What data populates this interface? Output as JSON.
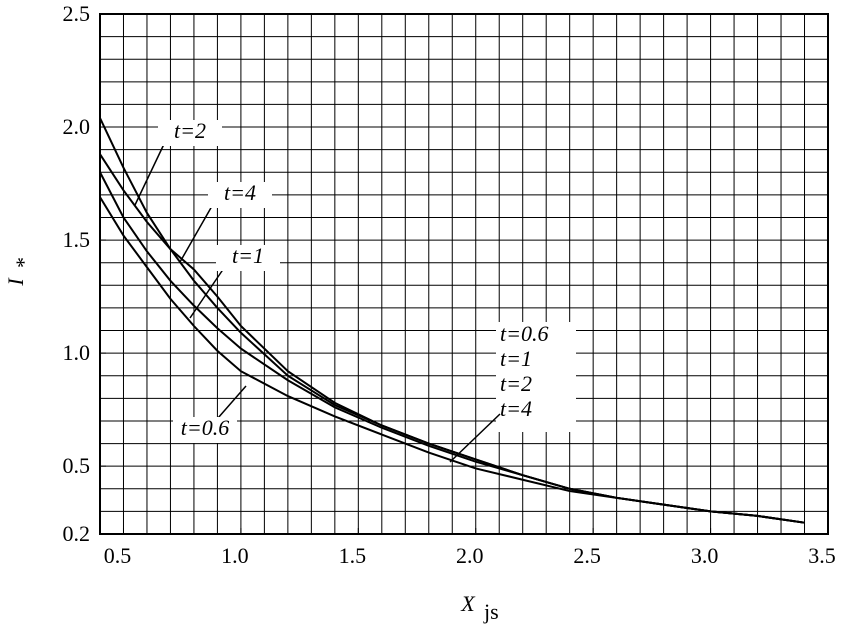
{
  "chart_data": {
    "type": "line",
    "xlabel": "X",
    "xlabel_sub": "js",
    "ylabel": "I",
    "ylabel_sub": "*",
    "x": [
      0.4,
      0.5,
      0.6,
      0.7,
      0.8,
      0.9,
      1.0,
      1.2,
      1.4,
      1.6,
      1.8,
      2.0,
      2.2,
      2.4,
      2.6,
      2.8,
      3.0,
      3.2,
      3.4
    ],
    "series": [
      {
        "name": "t=0.6",
        "color": "#000000",
        "values": [
          1.69,
          1.52,
          1.38,
          1.24,
          1.12,
          1.01,
          0.92,
          0.81,
          0.72,
          0.64,
          0.56,
          0.49,
          0.44,
          0.39,
          0.36,
          0.33,
          0.3,
          0.28,
          0.25
        ]
      },
      {
        "name": "t=1",
        "color": "#000000",
        "values": [
          1.8,
          1.6,
          1.45,
          1.32,
          1.21,
          1.11,
          1.02,
          0.88,
          0.76,
          0.67,
          0.59,
          0.52,
          0.46,
          0.4,
          0.36,
          0.33,
          0.3,
          0.28,
          0.25
        ]
      },
      {
        "name": "t=2",
        "color": "#000000",
        "values": [
          2.04,
          1.82,
          1.62,
          1.46,
          1.32,
          1.2,
          1.09,
          0.9,
          0.77,
          0.68,
          0.6,
          0.53,
          0.46,
          0.4,
          0.36,
          0.33,
          0.3,
          0.28,
          0.25
        ]
      },
      {
        "name": "t=4",
        "color": "#000000",
        "values": [
          1.88,
          1.72,
          1.58,
          1.46,
          1.37,
          1.25,
          1.12,
          0.92,
          0.78,
          0.68,
          0.6,
          0.53,
          0.46,
          0.4,
          0.36,
          0.33,
          0.3,
          0.28,
          0.25
        ]
      }
    ],
    "annotations": [
      "t=2",
      "t=4",
      "t=1",
      "t=0.6"
    ],
    "xlim": [
      0.4,
      3.5
    ],
    "ylim": [
      0.2,
      2.5
    ],
    "xticks": [
      0.5,
      {
        "value": 1.0,
        "label": "1.0"
      },
      1.5,
      {
        "value": 2.0,
        "label": "2.0"
      },
      2.5,
      {
        "value": 3.0,
        "label": "3.0"
      },
      3.5
    ],
    "yticks": [
      0.2,
      0.5,
      {
        "value": 1.0,
        "label": "1.0"
      },
      1.5,
      {
        "value": 2.0,
        "label": "2.0"
      },
      2.5
    ],
    "xgrid": [
      0.4,
      0.5,
      0.6,
      0.7,
      0.8,
      0.9,
      1.0,
      1.1,
      1.2,
      1.3,
      1.4,
      1.5,
      1.6,
      1.7,
      1.8,
      1.9,
      2.0,
      2.1,
      2.2,
      2.3,
      2.4,
      2.5,
      2.6,
      2.7,
      2.8,
      2.9,
      3.0,
      3.1,
      3.2,
      3.3,
      3.4,
      3.5
    ],
    "ygrid": [
      0.2,
      0.3,
      0.4,
      0.5,
      0.6,
      0.7,
      0.8,
      0.9,
      1.0,
      1.1,
      1.2,
      1.3,
      1.4,
      1.5,
      1.6,
      1.7,
      1.8,
      1.9,
      2.0,
      2.1,
      2.2,
      2.3,
      2.4,
      2.5
    ],
    "grid": true
  }
}
